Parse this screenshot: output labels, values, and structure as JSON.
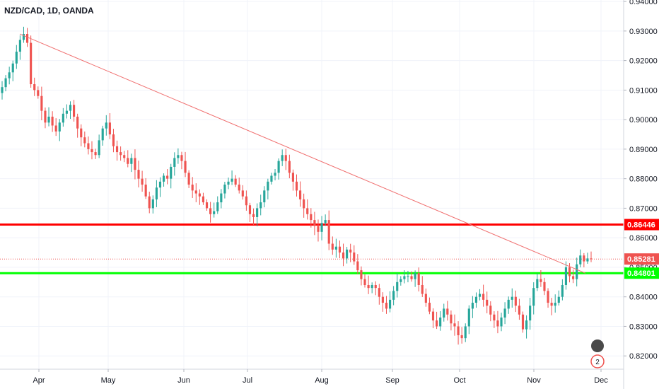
{
  "chart_data": {
    "type": "candlestick",
    "title": "NZD/CAD, 1D, OANDA",
    "ylim": [
      0.8155,
      0.9405
    ],
    "y_ticks": [
      "0.94000",
      "0.93000",
      "0.92000",
      "0.91000",
      "0.90000",
      "0.89000",
      "0.88000",
      "0.87000",
      "0.86000",
      "0.85000",
      "0.84000",
      "0.83000",
      "0.82000"
    ],
    "x_ticks": [
      "Apr",
      "May",
      "Jun",
      "Jul",
      "Aug",
      "Sep",
      "Oct",
      "Nov",
      "Dec"
    ],
    "grid": true,
    "colors": {
      "up": "#26a69a",
      "down": "#ef5350",
      "resistance": "#ff0000",
      "support": "#00ff00",
      "trend": "#f07070",
      "axis_bg": "#ffffff"
    },
    "close_series": [
      0.911,
      0.914,
      0.916,
      0.919,
      0.923,
      0.927,
      0.929,
      0.926,
      0.912,
      0.91,
      0.908,
      0.903,
      0.899,
      0.901,
      0.898,
      0.896,
      0.899,
      0.902,
      0.903,
      0.905,
      0.901,
      0.897,
      0.894,
      0.892,
      0.89,
      0.889,
      0.888,
      0.893,
      0.897,
      0.899,
      0.895,
      0.891,
      0.889,
      0.888,
      0.887,
      0.885,
      0.887,
      0.883,
      0.88,
      0.878,
      0.874,
      0.87,
      0.873,
      0.877,
      0.879,
      0.881,
      0.88,
      0.884,
      0.887,
      0.888,
      0.886,
      0.882,
      0.878,
      0.876,
      0.875,
      0.874,
      0.872,
      0.87,
      0.868,
      0.869,
      0.872,
      0.875,
      0.878,
      0.879,
      0.88,
      0.878,
      0.876,
      0.874,
      0.871,
      0.868,
      0.867,
      0.87,
      0.872,
      0.876,
      0.879,
      0.881,
      0.882,
      0.886,
      0.888,
      0.886,
      0.882,
      0.879,
      0.876,
      0.873,
      0.87,
      0.868,
      0.866,
      0.864,
      0.862,
      0.865,
      0.866,
      0.858,
      0.856,
      0.857,
      0.855,
      0.853,
      0.856,
      0.855,
      0.852,
      0.849,
      0.846,
      0.844,
      0.843,
      0.844,
      0.843,
      0.84,
      0.838,
      0.836,
      0.839,
      0.842,
      0.845,
      0.846,
      0.847,
      0.847,
      0.846,
      0.848,
      0.844,
      0.841,
      0.838,
      0.835,
      0.832,
      0.83,
      0.833,
      0.836,
      0.834,
      0.831,
      0.83,
      0.827,
      0.826,
      0.83,
      0.836,
      0.838,
      0.84,
      0.841,
      0.839,
      0.837,
      0.834,
      0.832,
      0.83,
      0.833,
      0.836,
      0.839,
      0.84,
      0.837,
      0.834,
      0.829,
      0.832,
      0.837,
      0.843,
      0.846,
      0.845,
      0.842,
      0.838,
      0.837,
      0.838,
      0.84,
      0.844,
      0.85,
      0.847,
      0.846,
      0.851,
      0.854,
      0.852,
      0.853,
      0.8528
    ],
    "price_tags": [
      {
        "value": 0.86446,
        "label": "0.86446",
        "color": "#ff0000"
      },
      {
        "value": 0.85281,
        "label": "0.85281",
        "color": "#ef5350"
      },
      {
        "value": 0.84801,
        "label": "0.84801",
        "color": "#00ff00"
      }
    ],
    "horizontal_lines": [
      {
        "value": 0.86446,
        "color": "#ff0000"
      },
      {
        "value": 0.84801,
        "color": "#00ff00"
      }
    ],
    "trendline": {
      "start_value": 0.929,
      "end_value": 0.848
    },
    "badge_count": "2"
  }
}
